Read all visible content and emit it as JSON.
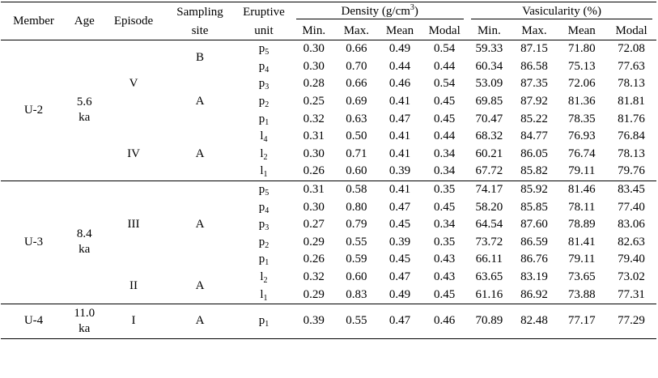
{
  "headers": {
    "member": "Member",
    "age": "Age",
    "episode": "Episode",
    "sampling_site_1": "Sampling",
    "sampling_site_2": "site",
    "eruptive_unit_1": "Eruptive",
    "eruptive_unit_2": "unit",
    "density_prefix": "Density (g/cm",
    "density_sup": "3",
    "density_suffix": ")",
    "vesicularity": "Vasicularity (%)",
    "min": "Min.",
    "max": "Max.",
    "mean": "Mean",
    "modal": "Modal"
  },
  "groups": {
    "u2": {
      "member": "U-2",
      "age_1": "5.6",
      "age_2": "ka"
    },
    "u3": {
      "member": "U-3",
      "age_1": "8.4",
      "age_2": "ka"
    },
    "u4": {
      "member": "U-4",
      "age_1": "11.0",
      "age_2": "ka"
    }
  },
  "episodes": {
    "v": "V",
    "iv": "IV",
    "iii": "III",
    "ii": "II",
    "i": "I"
  },
  "sites": {
    "b": "B",
    "a1": "A",
    "a2": "A",
    "a3": "A",
    "a4": "A",
    "a5": "A"
  },
  "rows": [
    {
      "u_base": "p",
      "u_sub": "5",
      "d_min": "0.30",
      "d_max": "0.66",
      "d_mean": "0.49",
      "d_modal": "0.54",
      "v_min": "59.33",
      "v_max": "87.15",
      "v_mean": "71.80",
      "v_modal": "72.08"
    },
    {
      "u_base": "p",
      "u_sub": "4",
      "d_min": "0.30",
      "d_max": "0.70",
      "d_mean": "0.44",
      "d_modal": "0.44",
      "v_min": "60.34",
      "v_max": "86.58",
      "v_mean": "75.13",
      "v_modal": "77.63"
    },
    {
      "u_base": "p",
      "u_sub": "3",
      "d_min": "0.28",
      "d_max": "0.66",
      "d_mean": "0.46",
      "d_modal": "0.54",
      "v_min": "53.09",
      "v_max": "87.35",
      "v_mean": "72.06",
      "v_modal": "78.13"
    },
    {
      "u_base": "p",
      "u_sub": "2",
      "d_min": "0.25",
      "d_max": "0.69",
      "d_mean": "0.41",
      "d_modal": "0.45",
      "v_min": "69.85",
      "v_max": "87.92",
      "v_mean": "81.36",
      "v_modal": "81.81"
    },
    {
      "u_base": "p",
      "u_sub": "1",
      "d_min": "0.32",
      "d_max": "0.63",
      "d_mean": "0.47",
      "d_modal": "0.45",
      "v_min": "70.47",
      "v_max": "85.22",
      "v_mean": "78.35",
      "v_modal": "81.76"
    },
    {
      "u_base": "l",
      "u_sub": "4",
      "d_min": "0.31",
      "d_max": "0.50",
      "d_mean": "0.41",
      "d_modal": "0.44",
      "v_min": "68.32",
      "v_max": "84.77",
      "v_mean": "76.93",
      "v_modal": "76.84"
    },
    {
      "u_base": "l",
      "u_sub": "2",
      "d_min": "0.30",
      "d_max": "0.71",
      "d_mean": "0.41",
      "d_modal": "0.34",
      "v_min": "60.21",
      "v_max": "86.05",
      "v_mean": "76.74",
      "v_modal": "78.13"
    },
    {
      "u_base": "l",
      "u_sub": "1",
      "d_min": "0.26",
      "d_max": "0.60",
      "d_mean": "0.39",
      "d_modal": "0.34",
      "v_min": "67.72",
      "v_max": "85.82",
      "v_mean": "79.11",
      "v_modal": "79.76"
    },
    {
      "u_base": "p",
      "u_sub": "5",
      "d_min": "0.31",
      "d_max": "0.58",
      "d_mean": "0.41",
      "d_modal": "0.35",
      "v_min": "74.17",
      "v_max": "85.92",
      "v_mean": "81.46",
      "v_modal": "83.45"
    },
    {
      "u_base": "p",
      "u_sub": "4",
      "d_min": "0.30",
      "d_max": "0.80",
      "d_mean": "0.47",
      "d_modal": "0.45",
      "v_min": "58.20",
      "v_max": "85.85",
      "v_mean": "78.11",
      "v_modal": "77.40"
    },
    {
      "u_base": "p",
      "u_sub": "3",
      "d_min": "0.27",
      "d_max": "0.79",
      "d_mean": "0.45",
      "d_modal": "0.34",
      "v_min": "64.54",
      "v_max": "87.60",
      "v_mean": "78.89",
      "v_modal": "83.06"
    },
    {
      "u_base": "p",
      "u_sub": "2",
      "d_min": "0.29",
      "d_max": "0.55",
      "d_mean": "0.39",
      "d_modal": "0.35",
      "v_min": "73.72",
      "v_max": "86.59",
      "v_mean": "81.41",
      "v_modal": "82.63"
    },
    {
      "u_base": "p",
      "u_sub": "1",
      "d_min": "0.26",
      "d_max": "0.59",
      "d_mean": "0.45",
      "d_modal": "0.43",
      "v_min": "66.11",
      "v_max": "86.76",
      "v_mean": "79.11",
      "v_modal": "79.40"
    },
    {
      "u_base": "l",
      "u_sub": "2",
      "d_min": "0.32",
      "d_max": "0.60",
      "d_mean": "0.47",
      "d_modal": "0.43",
      "v_min": "63.65",
      "v_max": "83.19",
      "v_mean": "73.65",
      "v_modal": "73.02"
    },
    {
      "u_base": "l",
      "u_sub": "1",
      "d_min": "0.29",
      "d_max": "0.83",
      "d_mean": "0.49",
      "d_modal": "0.45",
      "v_min": "61.16",
      "v_max": "86.92",
      "v_mean": "73.88",
      "v_modal": "77.31"
    },
    {
      "u_base": "p",
      "u_sub": "1",
      "d_min": "0.39",
      "d_max": "0.55",
      "d_mean": "0.47",
      "d_modal": "0.46",
      "v_min": "70.89",
      "v_max": "82.48",
      "v_mean": "77.17",
      "v_modal": "77.29"
    }
  ]
}
